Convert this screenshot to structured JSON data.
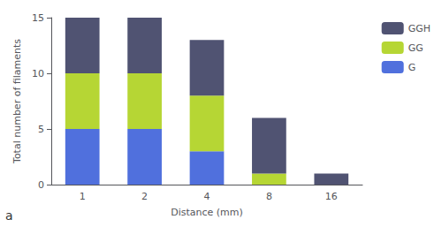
{
  "chart_data": {
    "type": "bar",
    "stacked": true,
    "categories": [
      "1",
      "2",
      "4",
      "8",
      "16"
    ],
    "series": [
      {
        "name": "G",
        "values": [
          5,
          5,
          3,
          0,
          0
        ]
      },
      {
        "name": "GG",
        "values": [
          5,
          5,
          5,
          1,
          0
        ]
      },
      {
        "name": "GGH",
        "values": [
          5,
          5,
          5,
          5,
          1
        ]
      }
    ],
    "xlabel": "Distance (mm)",
    "ylabel": "Total number of filaments",
    "ylim": [
      0,
      15
    ],
    "yticks": [
      0,
      5,
      10,
      15
    ],
    "grid": false,
    "legend": "upper right",
    "annotations": [
      "a"
    ]
  }
}
